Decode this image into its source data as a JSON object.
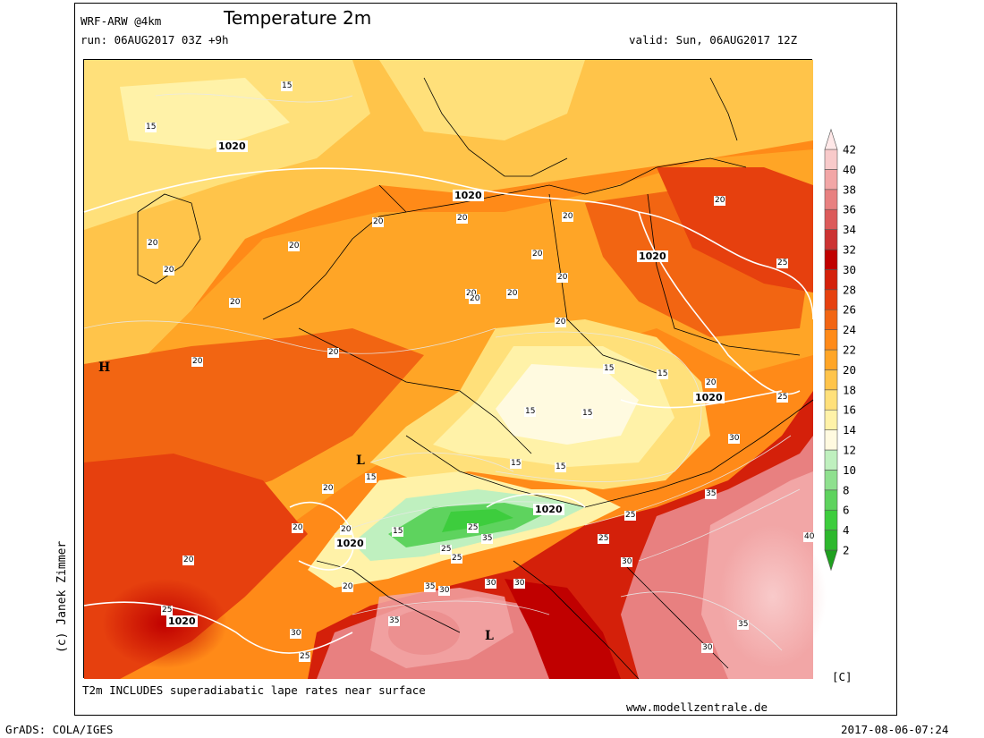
{
  "header": {
    "model": "WRF-ARW @4km",
    "title": "Temperature 2m",
    "run": "run: 06AUG2017 03Z +9h",
    "valid": "valid: Sun, 06AUG2017 12Z"
  },
  "footer": {
    "note": "T2m INCLUDES superadiabatic lape rates near surface",
    "website": "www.modellzentrale.de",
    "grads": "GrADS: COLA/IGES",
    "timestamp": "2017-08-06-07:24",
    "copyright": "(c) Janek Zimmer"
  },
  "legend": {
    "unit": "[C]",
    "ticks": [
      "2",
      "4",
      "6",
      "8",
      "10",
      "12",
      "14",
      "16",
      "18",
      "20",
      "22",
      "24",
      "26",
      "28",
      "30",
      "32",
      "34",
      "36",
      "38",
      "40",
      "42"
    ],
    "colors": [
      "#1fa01f",
      "#2db82d",
      "#3dcd3d",
      "#5ed35e",
      "#8fe08f",
      "#bff0bf",
      "#fffae0",
      "#fff2a8",
      "#ffe07a",
      "#ffc44a",
      "#ffa526",
      "#ff8a18",
      "#f26512",
      "#e6400e",
      "#d4200a",
      "#c00000",
      "#cc3232",
      "#dc5a5a",
      "#e88080",
      "#f2a6a6",
      "#f8caca",
      "#ffe8e8"
    ]
  },
  "map_labels": {
    "high": "H",
    "lows": [
      "L",
      "L"
    ],
    "isobars": [
      "1020",
      "1020",
      "1020",
      "1020",
      "1020",
      "1020",
      "1020"
    ],
    "temps": [
      "15",
      "15",
      "20",
      "20",
      "20",
      "20",
      "20",
      "20",
      "20",
      "20",
      "20",
      "20",
      "20",
      "20",
      "20",
      "20",
      "20",
      "20",
      "15",
      "15",
      "15",
      "15",
      "15",
      "15",
      "20",
      "25",
      "25",
      "30",
      "30",
      "35",
      "35",
      "40",
      "30",
      "25",
      "25",
      "30",
      "35",
      "35",
      "35",
      "30",
      "30",
      "25",
      "25",
      "20",
      "20",
      "15",
      "15",
      "20",
      "25",
      "30",
      "25",
      "20",
      "20",
      "25"
    ]
  }
}
